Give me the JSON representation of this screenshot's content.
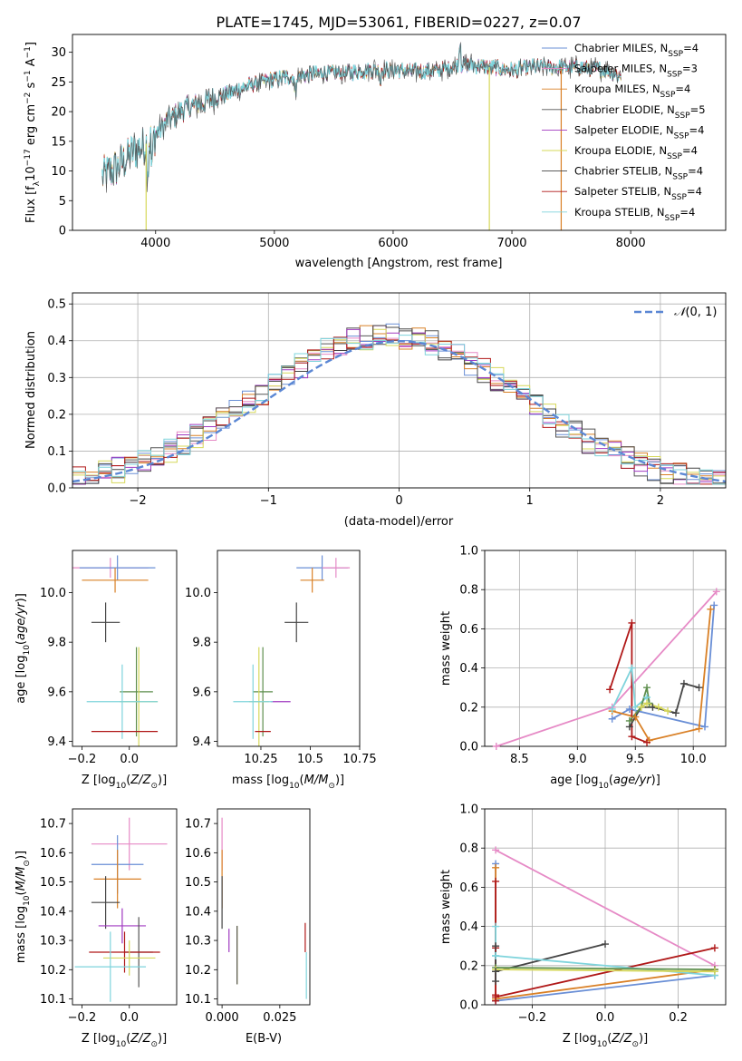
{
  "figure_title": "PLATE=1745, MJD=53061, FIBERID=0227, z=0.07",
  "colors": {
    "Chabrier MILES": "#6a8fd6",
    "Salpeter MILES": "#e68ac6",
    "Kroupa MILES": "#d98026",
    "Chabrier ELODIE": "#555555",
    "Salpeter ELODIE": "#a03ac0",
    "Kroupa ELODIE": "#d6d85a",
    "Chabrier STELIB": "#454545",
    "Salpeter STELIB": "#b01818",
    "Kroupa STELIB": "#7fd4dc",
    "Green": "#5e8f4e",
    "Gray": "#8a8a8a"
  },
  "chart_data": [
    {
      "id": "spectrum",
      "type": "line",
      "title": "PLATE=1745, MJD=53061, FIBERID=0227, z=0.07",
      "xlabel": "wavelength [Angstrom, rest frame]",
      "ylabel": "Flux [f_λ 10^-17 erg cm^-2 s^-1 A^-1]",
      "xlim": [
        3300,
        8800
      ],
      "ylim": [
        0,
        33
      ],
      "xticks": [
        4000,
        5000,
        6000,
        7000,
        8000
      ],
      "yticks": [
        0,
        5,
        10,
        15,
        20,
        25,
        30
      ],
      "grid": false,
      "legend_position": "top-right",
      "legend": [
        "Chabrier MILES, N_SSP=4",
        "Salpeter MILES, N_SSP=3",
        "Kroupa MILES, N_SSP=4",
        "Chabrier ELODIE, N_SSP=5",
        "Salpeter ELODIE, N_SSP=4",
        "Kroupa ELODIE, N_SSP=4",
        "Chabrier STELIB, N_SSP=4",
        "Salpeter STELIB, N_SSP=4",
        "Kroupa STELIB, N_SSP=4"
      ],
      "continuum": {
        "x": [
          3550,
          3700,
          3800,
          3950,
          4100,
          4250,
          4400,
          4600,
          4800,
          5000,
          5200,
          5400,
          5600,
          5800,
          6000,
          6200,
          6400,
          6600,
          6800,
          7000,
          7200,
          7400,
          7600,
          7800,
          7920
        ],
        "y": [
          9,
          11,
          13,
          15,
          18.5,
          20.5,
          21.5,
          23,
          24.5,
          25.5,
          26,
          26.5,
          26.5,
          27,
          27,
          26.8,
          27,
          28,
          27.5,
          27,
          27.5,
          27.5,
          27.5,
          27,
          26
        ]
      },
      "drops": [
        {
          "x": 3920,
          "model": "Kroupa ELODIE"
        },
        {
          "x": 6810,
          "model": "Kroupa ELODIE"
        },
        {
          "x": 7415,
          "model": "Kroupa MILES"
        }
      ]
    },
    {
      "id": "residuals",
      "type": "histogram",
      "xlabel": "(data-model)/error",
      "ylabel": "Normed distribution",
      "xlim": [
        -2.5,
        2.5
      ],
      "ylim": [
        0,
        0.53
      ],
      "xticks": [
        -2,
        -1,
        0,
        1,
        2
      ],
      "yticks": [
        0.0,
        0.1,
        0.2,
        0.3,
        0.4,
        0.5
      ],
      "grid": true,
      "legend_position": "top-right",
      "legend": [
        "N(0, 1)"
      ],
      "bin_width": 0.1,
      "reference_curve": "normal(0,1)"
    },
    {
      "id": "age_vs_Z",
      "type": "errorbar",
      "xlabel": "Z [log10(Z/Z⊙)]",
      "ylabel": "age  [log10(age/yr)]",
      "xlim": [
        -0.24,
        0.2
      ],
      "ylim": [
        9.38,
        10.17
      ],
      "xticks": [
        -0.2,
        0.0
      ],
      "yticks": [
        9.4,
        9.6,
        9.8,
        10.0
      ],
      "grid": false,
      "points": [
        {
          "model": "Salpeter MILES",
          "x": -0.08,
          "xerr": 0.16,
          "y": 10.1,
          "yerr": 0.04
        },
        {
          "model": "Chabrier MILES",
          "x": -0.05,
          "xerr": 0.16,
          "y": 10.1,
          "yerr": 0.05
        },
        {
          "model": "Kroupa MILES",
          "x": -0.06,
          "xerr": 0.14,
          "y": 10.05,
          "yerr": 0.05
        },
        {
          "model": "Chabrier STELIB",
          "x": -0.1,
          "xerr": 0.06,
          "y": 9.88,
          "yerr": 0.08
        },
        {
          "model": "Green",
          "x": 0.03,
          "xerr": 0.07,
          "y": 9.6,
          "yerr": 0.18
        },
        {
          "model": "Kroupa ELODIE",
          "x": 0.04,
          "xerr": 0.08,
          "y": 9.56,
          "yerr": 0.22
        },
        {
          "model": "Kroupa STELIB",
          "x": -0.03,
          "xerr": 0.15,
          "y": 9.56,
          "yerr": 0.15
        },
        {
          "model": "Salpeter STELIB",
          "x": -0.02,
          "xerr": 0.14,
          "y": 9.44,
          "yerr": 0.0
        }
      ]
    },
    {
      "id": "age_vs_mass",
      "type": "errorbar",
      "xlabel": "mass [log10(M/M⊙)]",
      "ylabel": "",
      "xlim": [
        10.03,
        10.75
      ],
      "ylim": [
        9.38,
        10.17
      ],
      "xticks": [
        10.25,
        10.5,
        10.75
      ],
      "yticks": [
        9.4,
        9.6,
        9.8,
        10.0
      ],
      "grid": false,
      "points": [
        {
          "model": "Chabrier MILES",
          "x": 10.56,
          "xerr": 0.13,
          "y": 10.1,
          "yerr": 0.05
        },
        {
          "model": "Salpeter MILES",
          "x": 10.63,
          "xerr": 0.07,
          "y": 10.1,
          "yerr": 0.04
        },
        {
          "model": "Kroupa MILES",
          "x": 10.51,
          "xerr": 0.06,
          "y": 10.05,
          "yerr": 0.05
        },
        {
          "model": "Chabrier STELIB",
          "x": 10.43,
          "xerr": 0.06,
          "y": 9.88,
          "yerr": 0.08
        },
        {
          "model": "Salpeter ELODIE",
          "x": 10.35,
          "xerr": 0.05,
          "y": 9.56,
          "yerr": 0.0
        },
        {
          "model": "Green",
          "x": 10.26,
          "xerr": 0.05,
          "y": 9.6,
          "yerr": 0.18
        },
        {
          "model": "Kroupa ELODIE",
          "x": 10.24,
          "xerr": 0.05,
          "y": 9.56,
          "yerr": 0.22
        },
        {
          "model": "Kroupa STELIB",
          "x": 10.21,
          "xerr": 0.1,
          "y": 9.56,
          "yerr": 0.15
        },
        {
          "model": "Salpeter STELIB",
          "x": 10.26,
          "xerr": 0.04,
          "y": 9.44,
          "yerr": 0.0
        }
      ]
    },
    {
      "id": "mass_weight_vs_age",
      "type": "line",
      "xlabel": "age  [log10(age/yr)]",
      "ylabel": "mass weight",
      "xlim": [
        8.2,
        10.28
      ],
      "ylim": [
        0,
        1
      ],
      "xticks": [
        8.5,
        9.0,
        9.5,
        10.0
      ],
      "yticks": [
        0.0,
        0.2,
        0.4,
        0.6,
        0.8,
        1.0
      ],
      "grid": true,
      "series": [
        {
          "model": "Salpeter MILES",
          "x": [
            8.3,
            9.3,
            10.2
          ],
          "y": [
            0.0,
            0.2,
            0.79
          ]
        },
        {
          "model": "Chabrier MILES",
          "x": [
            9.3,
            9.45,
            10.1,
            10.18
          ],
          "y": [
            0.14,
            0.19,
            0.1,
            0.72
          ]
        },
        {
          "model": "Kroupa MILES",
          "x": [
            9.3,
            9.5,
            9.62,
            10.05,
            10.15
          ],
          "y": [
            0.18,
            0.15,
            0.03,
            0.09,
            0.7
          ]
        },
        {
          "model": "Salpeter STELIB",
          "x": [
            9.28,
            9.47,
            9.47,
            9.6
          ],
          "y": [
            0.29,
            0.63,
            0.05,
            0.02
          ]
        },
        {
          "model": "Kroupa STELIB",
          "x": [
            9.3,
            9.47,
            9.5,
            9.6
          ],
          "y": [
            0.19,
            0.4,
            0.2,
            0.25
          ]
        },
        {
          "model": "Chabrier STELIB",
          "x": [
            9.45,
            9.55,
            9.65,
            9.85,
            9.92,
            10.05
          ],
          "y": [
            0.1,
            0.2,
            0.2,
            0.17,
            0.32,
            0.3
          ]
        },
        {
          "model": "Green",
          "x": [
            9.45,
            9.55,
            9.6,
            9.62
          ],
          "y": [
            0.13,
            0.2,
            0.3,
            0.22
          ]
        },
        {
          "model": "Kroupa ELODIE",
          "x": [
            9.55,
            9.6,
            9.7,
            9.78
          ],
          "y": [
            0.2,
            0.22,
            0.2,
            0.18
          ]
        }
      ]
    },
    {
      "id": "mass_vs_Z",
      "type": "errorbar",
      "xlabel": "Z [log10(Z/Z⊙)]",
      "ylabel": "mass [log10(M/M⊙)]",
      "xlim": [
        -0.24,
        0.2
      ],
      "ylim": [
        10.08,
        10.75
      ],
      "xticks": [
        -0.2,
        0.0
      ],
      "yticks": [
        10.1,
        10.2,
        10.3,
        10.4,
        10.5,
        10.6,
        10.7
      ],
      "grid": false,
      "points": [
        {
          "model": "Salpeter MILES",
          "x": 0.0,
          "xerr": 0.16,
          "y": 10.63,
          "yerr": 0.09
        },
        {
          "model": "Chabrier MILES",
          "x": -0.05,
          "xerr": 0.11,
          "y": 10.56,
          "yerr": 0.1
        },
        {
          "model": "Kroupa MILES",
          "x": -0.05,
          "xerr": 0.1,
          "y": 10.51,
          "yerr": 0.1
        },
        {
          "model": "Chabrier STELIB",
          "x": -0.1,
          "xerr": 0.06,
          "y": 10.43,
          "yerr": 0.09
        },
        {
          "model": "Salpeter ELODIE",
          "x": -0.03,
          "xerr": 0.1,
          "y": 10.35,
          "yerr": 0.06
        },
        {
          "model": "Chabrier ELODIE",
          "x": 0.04,
          "xerr": 0.06,
          "y": 10.26,
          "yerr": 0.12
        },
        {
          "model": "Salpeter STELIB",
          "x": -0.02,
          "xerr": 0.15,
          "y": 10.26,
          "yerr": 0.07
        },
        {
          "model": "Kroupa ELODIE",
          "x": 0.0,
          "xerr": 0.11,
          "y": 10.24,
          "yerr": 0.06
        },
        {
          "model": "Kroupa STELIB",
          "x": -0.08,
          "xerr": 0.15,
          "y": 10.21,
          "yerr": 0.12
        }
      ]
    },
    {
      "id": "mass_vs_ebv",
      "type": "errorbar",
      "xlabel": "E(B-V)",
      "ylabel": "",
      "xlim": [
        -0.002,
        0.038
      ],
      "ylim": [
        10.08,
        10.75
      ],
      "xticks": [
        0.0,
        0.025
      ],
      "yticks": [
        10.1,
        10.2,
        10.3,
        10.4,
        10.5,
        10.6,
        10.7
      ],
      "grid": false,
      "points": [
        {
          "model": "Salpeter MILES",
          "x": 0.0,
          "xerr": 0.0,
          "y": 10.63,
          "yerr": 0.09
        },
        {
          "model": "Kroupa MILES",
          "x": 0.0,
          "xerr": 0.0,
          "y": 10.51,
          "yerr": 0.1
        },
        {
          "model": "Chabrier STELIB",
          "x": 0.0,
          "xerr": 0.0,
          "y": 10.43,
          "yerr": 0.09
        },
        {
          "model": "Salpeter ELODIE",
          "x": 0.003,
          "xerr": 0.0,
          "y": 10.3,
          "yerr": 0.04
        },
        {
          "model": "Kroupa ELODIE",
          "x": 0.0065,
          "xerr": 0.0,
          "y": 10.25,
          "yerr": 0.1
        },
        {
          "model": "Chabrier ELODIE",
          "x": 0.0065,
          "xerr": 0.0,
          "y": 10.25,
          "yerr": 0.1
        },
        {
          "model": "Salpeter STELIB",
          "x": 0.036,
          "xerr": 0.0,
          "y": 10.31,
          "yerr": 0.05
        },
        {
          "model": "Kroupa STELIB",
          "x": 0.0365,
          "xerr": 0.0,
          "y": 10.18,
          "yerr": 0.08
        }
      ]
    },
    {
      "id": "mass_weight_vs_Z",
      "type": "line",
      "xlabel": "Z [log10(Z/Z⊙)]",
      "ylabel": "mass weight",
      "xlim": [
        -0.33,
        0.33
      ],
      "ylim": [
        0,
        1
      ],
      "xticks": [
        -0.2,
        0.0,
        0.2
      ],
      "yticks": [
        0.0,
        0.2,
        0.4,
        0.6,
        0.8,
        1.0
      ],
      "grid": true,
      "series": [
        {
          "model": "Salpeter MILES",
          "x": [
            -0.3,
            0.3
          ],
          "y": [
            0.79,
            0.2
          ]
        },
        {
          "model": "Chabrier MILES",
          "x": [
            -0.3,
            0.3
          ],
          "y": [
            0.02,
            0.15
          ]
        },
        {
          "model": "Kroupa MILES",
          "x": [
            -0.3,
            0.3
          ],
          "y": [
            0.03,
            0.18
          ]
        },
        {
          "model": "Salpeter STELIB",
          "x": [
            -0.3,
            0.3
          ],
          "y": [
            0.04,
            0.29
          ]
        },
        {
          "model": "Chabrier STELIB",
          "x": [
            -0.3,
            0.0
          ],
          "y": [
            0.17,
            0.31
          ]
        },
        {
          "model": "Kroupa STELIB",
          "x": [
            -0.3,
            0.3
          ],
          "y": [
            0.25,
            0.15
          ]
        },
        {
          "model": "Green",
          "x": [
            -0.3,
            0.3
          ],
          "y": [
            0.19,
            0.18
          ]
        },
        {
          "model": "Kroupa ELODIE",
          "x": [
            -0.3,
            0.3
          ],
          "y": [
            0.18,
            0.17
          ]
        }
      ],
      "markers_left": [
        {
          "model": "Chabrier MILES",
          "y": [
            0.72,
            0.02
          ]
        },
        {
          "model": "Kroupa MILES",
          "y": [
            0.7,
            0.03
          ]
        },
        {
          "model": "Salpeter STELIB",
          "y": [
            0.63,
            0.29,
            0.05,
            0.02
          ]
        },
        {
          "model": "Kroupa STELIB",
          "y": [
            0.4,
            0.25
          ]
        },
        {
          "model": "Chabrier STELIB",
          "y": [
            0.3,
            0.17,
            0.12
          ]
        }
      ]
    }
  ]
}
